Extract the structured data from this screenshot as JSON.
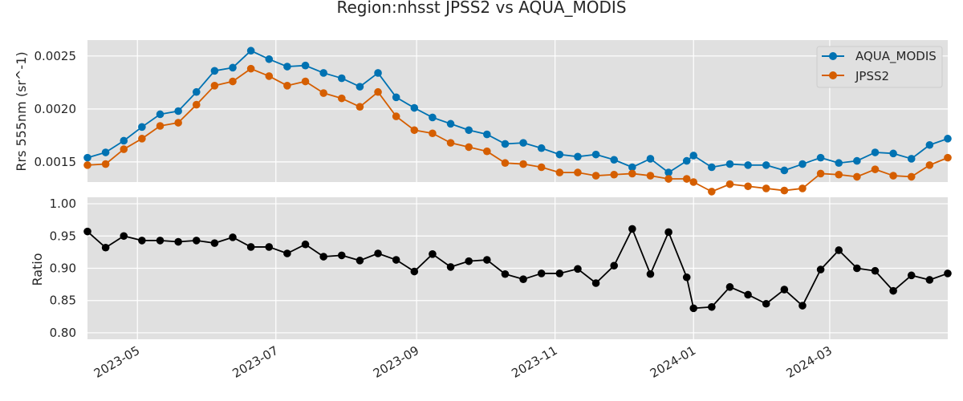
{
  "chart_data": {
    "type": "line",
    "title": "Region:nhsst JPSS2 vs AQUA_MODIS",
    "x": [
      "2023-04-09",
      "2023-04-17",
      "2023-04-25",
      "2023-05-03",
      "2023-05-11",
      "2023-05-19",
      "2023-05-27",
      "2023-06-04",
      "2023-06-12",
      "2023-06-20",
      "2023-06-28",
      "2023-07-06",
      "2023-07-14",
      "2023-07-22",
      "2023-07-30",
      "2023-08-07",
      "2023-08-15",
      "2023-08-23",
      "2023-08-31",
      "2023-09-08",
      "2023-09-16",
      "2023-09-24",
      "2023-10-02",
      "2023-10-10",
      "2023-10-18",
      "2023-10-26",
      "2023-11-03",
      "2023-11-11",
      "2023-11-19",
      "2023-11-27",
      "2023-12-05",
      "2023-12-13",
      "2023-12-21",
      "2023-12-29",
      "2024-01-01",
      "2024-01-09",
      "2024-01-17",
      "2024-01-25",
      "2024-02-02",
      "2024-02-10",
      "2024-02-18",
      "2024-02-26",
      "2024-03-05",
      "2024-03-13",
      "2024-03-21",
      "2024-03-29",
      "2024-04-06",
      "2024-04-14",
      "2024-04-22"
    ],
    "x_tick_labels": [
      "2023-05",
      "2023-07",
      "2023-09",
      "2023-11",
      "2024-01",
      "2024-03"
    ],
    "x_tick_dates": [
      "2023-05-01",
      "2023-07-01",
      "2023-09-01",
      "2023-11-01",
      "2024-01-01",
      "2024-03-01"
    ],
    "xlim": [
      "2023-04-09",
      "2024-04-22"
    ],
    "grid": true,
    "panels": [
      {
        "ylabel": "Rrs 555nm (sr^-1)",
        "ylim": [
          0.00131,
          0.00265
        ],
        "yticks": [
          0.0015,
          0.002,
          0.0025
        ],
        "ytick_labels": [
          "0.0015",
          "0.0020",
          "0.0025"
        ],
        "legend_position": "top-right",
        "series": [
          {
            "name": "AQUA_MODIS",
            "color": "#0072b2",
            "values": [
              0.00154,
              0.00159,
              0.0017,
              0.00183,
              0.00195,
              0.00198,
              0.00216,
              0.00236,
              0.00239,
              0.00255,
              0.00247,
              0.0024,
              0.00241,
              0.00234,
              0.00229,
              0.00221,
              0.00234,
              0.00211,
              0.00201,
              0.00192,
              0.00186,
              0.0018,
              0.00176,
              0.00167,
              0.00168,
              0.00163,
              0.00157,
              0.00155,
              0.00157,
              0.00152,
              0.00145,
              0.00153,
              0.0014,
              0.00151,
              0.00156,
              0.00145,
              0.00148,
              0.00147,
              0.00147,
              0.00142,
              0.00148,
              0.00154,
              0.00149,
              0.00151,
              0.00159,
              0.00158,
              0.00153,
              0.00166,
              0.00172
            ]
          },
          {
            "name": "JPSS2",
            "color": "#d55e00",
            "values": [
              0.00147,
              0.00148,
              0.00162,
              0.00172,
              0.00184,
              0.00187,
              0.00204,
              0.00222,
              0.00226,
              0.00238,
              0.00231,
              0.00222,
              0.00226,
              0.00215,
              0.0021,
              0.00202,
              0.00216,
              0.00193,
              0.0018,
              0.00177,
              0.00168,
              0.00164,
              0.0016,
              0.00149,
              0.00148,
              0.00145,
              0.0014,
              0.0014,
              0.00137,
              0.00138,
              0.00139,
              0.00137,
              0.00134,
              0.00134,
              0.00131,
              0.00122,
              0.00129,
              0.00127,
              0.00125,
              0.00123,
              0.00125,
              0.00139,
              0.00138,
              0.00136,
              0.00143,
              0.00137,
              0.00136,
              0.00147,
              0.00154
            ]
          }
        ]
      },
      {
        "ylabel": "Ratio",
        "ylim": [
          0.79,
          1.01
        ],
        "yticks": [
          0.8,
          0.85,
          0.9,
          0.95,
          1.0
        ],
        "ytick_labels": [
          "0.80",
          "0.85",
          "0.90",
          "0.95",
          "1.00"
        ],
        "series": [
          {
            "name": "",
            "color": "#000000",
            "values": [
              0.957,
              0.932,
              0.95,
              0.943,
              0.943,
              0.941,
              0.943,
              0.939,
              0.948,
              0.933,
              0.933,
              0.923,
              0.937,
              0.918,
              0.92,
              0.912,
              0.923,
              0.913,
              0.895,
              0.922,
              0.902,
              0.911,
              0.913,
              0.891,
              0.883,
              0.892,
              0.892,
              0.899,
              0.877,
              0.904,
              0.961,
              0.891,
              0.956,
              0.886,
              0.838,
              0.84,
              0.871,
              0.859,
              0.845,
              0.867,
              0.842,
              0.898,
              0.928,
              0.9,
              0.896,
              0.865,
              0.889,
              0.882,
              0.892
            ]
          }
        ]
      }
    ]
  }
}
